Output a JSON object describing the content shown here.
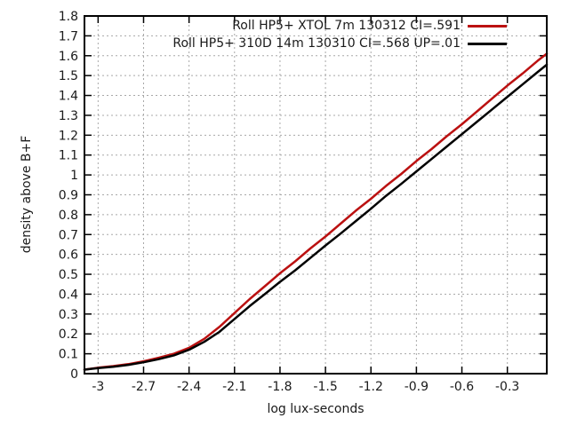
{
  "chart_data": {
    "type": "line",
    "title": "",
    "xlabel": "log lux-seconds",
    "ylabel": "density above B+F",
    "xlim": [
      -3.09,
      -0.04
    ],
    "ylim": [
      0,
      1.8
    ],
    "grid": true,
    "grid_style": "dotted",
    "legend_position": "top-right-inside",
    "xticks": {
      "values": [
        -3,
        -2.7,
        -2.4,
        -2.1,
        -1.8,
        -1.5,
        -1.2,
        -0.9,
        -0.6,
        -0.3
      ],
      "labels": [
        "-3",
        "-2.7",
        "-2.4",
        "-2.1",
        "-1.8",
        "-1.5",
        "-1.2",
        "-0.9",
        "-0.6",
        "-0.3"
      ]
    },
    "yticks": {
      "values": [
        0,
        0.1,
        0.2,
        0.3,
        0.4,
        0.5,
        0.6,
        0.7,
        0.8,
        0.9,
        1.0,
        1.1,
        1.2,
        1.3,
        1.4,
        1.5,
        1.6,
        1.7,
        1.8
      ],
      "labels": [
        "0",
        "0.1",
        "0.2",
        "0.3",
        "0.4",
        "0.5",
        "0.6",
        "0.7",
        "0.8",
        "0.9",
        "1",
        "1.1",
        "1.2",
        "1.3",
        "1.4",
        "1.5",
        "1.6",
        "1.7",
        "1.8"
      ]
    },
    "x": [
      -3.09,
      -3.0,
      -2.9,
      -2.8,
      -2.7,
      -2.6,
      -2.5,
      -2.4,
      -2.3,
      -2.2,
      -2.1,
      -2.0,
      -1.9,
      -1.8,
      -1.7,
      -1.6,
      -1.5,
      -1.4,
      -1.3,
      -1.2,
      -1.1,
      -1.0,
      -0.9,
      -0.8,
      -0.7,
      -0.6,
      -0.5,
      -0.4,
      -0.3,
      -0.2,
      -0.1,
      -0.04
    ],
    "series": [
      {
        "name": "Roll HP5+ XTOL 7m 130312 CI=.591",
        "color": "#bb1111",
        "ci": ".591",
        "values": [
          0.02,
          0.03,
          0.038,
          0.048,
          0.062,
          0.08,
          0.1,
          0.13,
          0.175,
          0.235,
          0.305,
          0.375,
          0.44,
          0.505,
          0.565,
          0.63,
          0.69,
          0.755,
          0.82,
          0.88,
          0.945,
          1.005,
          1.07,
          1.13,
          1.195,
          1.255,
          1.32,
          1.385,
          1.45,
          1.51,
          1.575,
          1.61
        ]
      },
      {
        "name": "Roll HP5+ 310D 14m 130310 CI=.568 UP=.01",
        "color": "#000000",
        "ci": ".568",
        "values": [
          0.02,
          0.028,
          0.035,
          0.044,
          0.057,
          0.073,
          0.092,
          0.12,
          0.16,
          0.21,
          0.275,
          0.34,
          0.4,
          0.462,
          0.52,
          0.582,
          0.645,
          0.705,
          0.768,
          0.83,
          0.895,
          0.955,
          1.018,
          1.08,
          1.143,
          1.205,
          1.268,
          1.33,
          1.393,
          1.455,
          1.518,
          1.555
        ]
      }
    ]
  },
  "colors": {
    "background": "#ffffff",
    "border": "#000000",
    "grid": "#a8a8a8",
    "text": "#1a1a1a",
    "series_red": "#bb1111",
    "series_black": "#000000"
  }
}
